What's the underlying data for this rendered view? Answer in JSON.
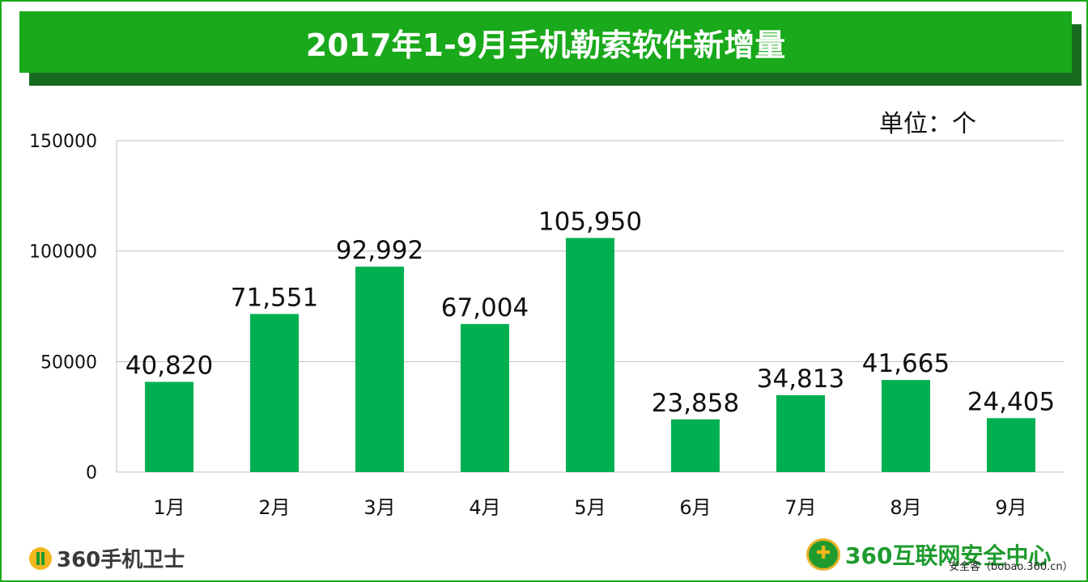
{
  "title": "2017年1-9月手机勒索软件新增量",
  "unit_label": "单位：个",
  "colors": {
    "frame": "#19a91b",
    "bar": "#00b050",
    "grid": "#bfbfbf"
  },
  "footer": {
    "left_brand": "360手机卫士",
    "left_icon": "360-badge-icon",
    "right_brand": "360互联网安全中心",
    "right_icon": "360-emblem-icon",
    "watermark": "安全客（bobao.360.cn）"
  },
  "chart_data": {
    "type": "bar",
    "title": "2017年1-9月手机勒索软件新增量",
    "xlabel": "",
    "ylabel": "",
    "unit": "单位：个",
    "categories": [
      "1月",
      "2月",
      "3月",
      "4月",
      "5月",
      "6月",
      "7月",
      "8月",
      "9月"
    ],
    "values": [
      40820,
      71551,
      92992,
      67004,
      105950,
      23858,
      34813,
      41665,
      24405
    ],
    "data_labels": [
      "40,820",
      "71,551",
      "92,992",
      "67,004",
      "105,950",
      "23,858",
      "34,813",
      "41,665",
      "24,405"
    ],
    "y_ticks": [
      "0",
      "50000",
      "100000",
      "150000"
    ],
    "ylim": [
      0,
      150000
    ],
    "grid": true,
    "legend": "none"
  }
}
